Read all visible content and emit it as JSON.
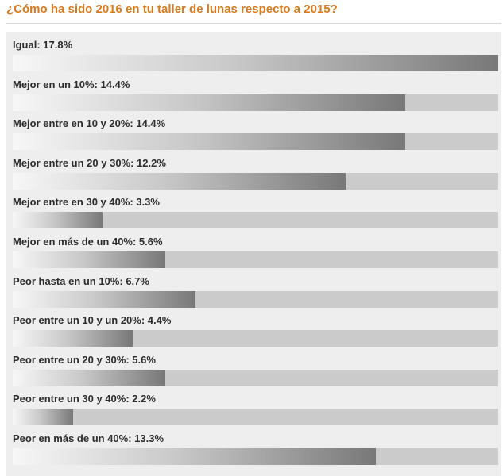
{
  "poll": {
    "question": "¿Cómo ha sido 2016 en tu taller de lunas respecto a 2015?"
  },
  "colors": {
    "title": "#d97a1e",
    "panel": "#eeeeee",
    "track": "#cbcbcb",
    "bar_light": "#f7f7f7",
    "bar_dark": "#787878"
  },
  "chart_data": {
    "type": "bar",
    "orientation": "horizontal",
    "title": "¿Cómo ha sido 2016 en tu taller de lunas respecto a 2015?",
    "unit": "%",
    "categories": [
      "Igual",
      "Mejor en un 10%",
      "Mejor entre en 10 y 20%",
      "Mejor entre un 20 y 30%",
      "Mejor entre en 30 y 40%",
      "Mejor en más de un 40%",
      "Peor hasta en un 10%",
      "Peor entre un 10 y un 20%",
      "Peor entre un 20 y 30%",
      "Peor entre un 30 y 40%",
      "Peor en más de un 40%"
    ],
    "values": [
      17.8,
      14.4,
      14.4,
      12.2,
      3.3,
      5.6,
      6.7,
      4.4,
      5.6,
      2.2,
      13.3
    ],
    "labels": [
      "Igual: 17.8%",
      "Mejor en un 10%: 14.4%",
      "Mejor entre en 10 y 20%: 14.4%",
      "Mejor entre un 20 y 30%: 12.2%",
      "Mejor entre en 30 y 40%: 3.3%",
      "Mejor en más de un 40%: 5.6%",
      "Peor hasta en un 10%: 6.7%",
      "Peor entre un 10 y un 20%: 4.4%",
      "Peor entre un 20 y 30%: 5.6%",
      "Peor entre un 30 y 40%: 2.2%",
      "Peor en más de un 40%: 13.3%"
    ],
    "scale_max": 17.8
  }
}
